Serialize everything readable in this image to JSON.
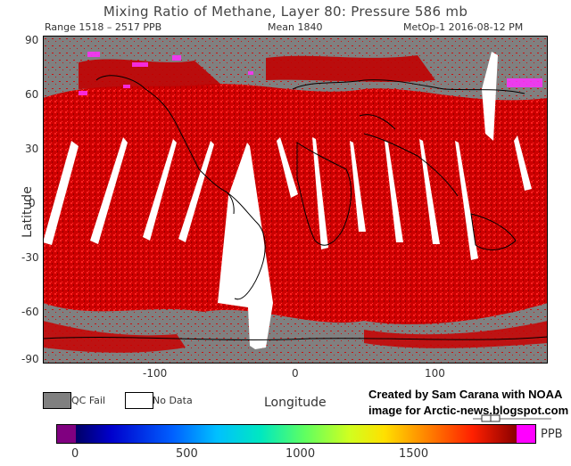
{
  "title": "Mixing Ratio of Methane, Layer 80: Pressure 586 mb",
  "subtitle": {
    "range": "Range 1518 – 2517 PPB",
    "mean": "Mean 1840",
    "satellite_date": "MetOp-1 2016-08-12 PM"
  },
  "axes": {
    "y_label": "Latitude",
    "x_label": "Longitude",
    "y_ticks": [
      "90",
      "60",
      "30",
      "0",
      "-30",
      "-60",
      "-90"
    ],
    "x_ticks": [
      "-100",
      "0",
      "100"
    ]
  },
  "legend": {
    "qc_fail": "QC Fail",
    "no_data": "No Data",
    "qc_color": "#808080",
    "no_data_color": "#ffffff"
  },
  "credit": {
    "line1": "Created by Sam Carana with NOAA",
    "line2": "image for Arctic-news.blogspot.com"
  },
  "colorbar": {
    "unit": "PPB",
    "ticks": [
      "0",
      "500",
      "1000",
      "1500"
    ],
    "low_color": "#800080",
    "high_color": "#ff00ff"
  },
  "colors": {
    "qc_gray": "#808080",
    "methane_red": "#d40000",
    "methane_bright": "#ff1010",
    "magenta": "#ff30ff",
    "coast": "#000000"
  }
}
